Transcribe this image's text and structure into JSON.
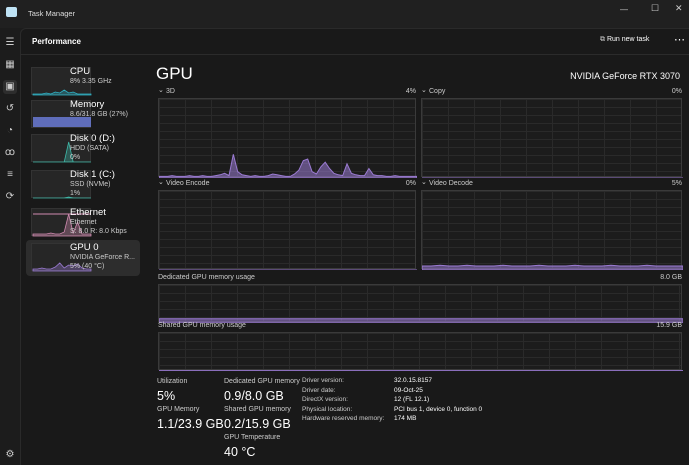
{
  "app": {
    "title": "Task Manager",
    "page": "Performance",
    "run_new_task": "Run new task",
    "more": "⋯",
    "window_controls": [
      "—",
      "☐",
      "✕"
    ]
  },
  "accent": "#9b7bd3",
  "sidebar": [
    {
      "name": "CPU",
      "sub1": "8%  3.35 GHz",
      "sub2": "",
      "sub3": "",
      "color": "#2fb4c8"
    },
    {
      "name": "Memory",
      "sub1": "8.6/31.8 GB (27%)",
      "sub2": "",
      "sub3": "",
      "color": "#6e7fe0"
    },
    {
      "name": "Disk 0 (D:)",
      "sub1": "HDD (SATA)",
      "sub2": "0%",
      "sub3": "",
      "color": "#3fb8a8"
    },
    {
      "name": "Disk 1 (C:)",
      "sub1": "SSD (NVMe)",
      "sub2": "1%",
      "sub3": "",
      "color": "#3fb8a8"
    },
    {
      "name": "Ethernet",
      "sub1": "Ethernet",
      "sub2": "S: 8.0  R: 8.0 Kbps",
      "sub3": "",
      "color": "#d08ab0"
    },
    {
      "name": "GPU 0",
      "sub1": "NVIDIA GeForce R...",
      "sub2": "5% (40 °C)",
      "sub3": "",
      "color": "#9b7bd3"
    }
  ],
  "main": {
    "title": "GPU",
    "device": "NVIDIA GeForce RTX 3070",
    "engines": [
      {
        "label": "3D",
        "value": "4%"
      },
      {
        "label": "Copy",
        "value": "0%"
      },
      {
        "label": "Video Encode",
        "value": "0%"
      },
      {
        "label": "Video Decode",
        "value": "5%"
      }
    ],
    "dedicated": {
      "label": "Dedicated GPU memory usage",
      "max": "8.0 GB"
    },
    "shared": {
      "label": "Shared GPU memory usage",
      "max": "15.9 GB"
    },
    "stats": {
      "utilization_label": "Utilization",
      "utilization": "5%",
      "gpu_memory_label": "GPU Memory",
      "gpu_memory": "1.1/23.9 GB",
      "dedicated_label": "Dedicated GPU memory",
      "dedicated": "0.9/8.0 GB",
      "shared_label": "Shared GPU memory",
      "shared": "0.2/15.9 GB",
      "temp_label": "GPU Temperature",
      "temp": "40 °C"
    },
    "details": [
      {
        "k": "Driver version:",
        "v": "32.0.15.8157"
      },
      {
        "k": "Driver date:",
        "v": "09-Oct-25"
      },
      {
        "k": "DirectX version:",
        "v": "12 (FL 12.1)"
      },
      {
        "k": "Physical location:",
        "v": "PCI bus 1, device 0, function 0"
      },
      {
        "k": "Hardware reserved memory:",
        "v": "174 MB"
      }
    ]
  },
  "chart_data": [
    {
      "type": "area",
      "name": "3D",
      "ylim": [
        0,
        100
      ],
      "values": [
        2,
        2,
        2,
        3,
        2,
        2,
        2,
        3,
        2,
        2,
        3,
        2,
        2,
        3,
        4,
        6,
        3,
        30,
        8,
        4,
        3,
        2,
        3,
        2,
        2,
        3,
        5,
        4,
        3,
        2,
        2,
        5,
        10,
        22,
        24,
        8,
        5,
        14,
        20,
        12,
        6,
        4,
        3,
        18,
        6,
        4,
        3,
        3,
        12,
        4,
        3,
        3,
        2,
        2,
        3,
        2,
        2,
        2,
        2,
        2
      ]
    },
    {
      "type": "area",
      "name": "Copy",
      "ylim": [
        0,
        100
      ],
      "values": [
        0,
        0,
        0,
        0,
        0,
        0,
        0,
        0,
        0,
        0
      ]
    },
    {
      "type": "area",
      "name": "Video Encode",
      "ylim": [
        0,
        100
      ],
      "values": [
        0,
        0,
        0,
        0,
        0,
        0,
        0,
        0,
        0,
        0
      ]
    },
    {
      "type": "area",
      "name": "Video Decode",
      "ylim": [
        0,
        100
      ],
      "values": [
        5,
        5,
        6,
        5,
        5,
        6,
        5,
        5,
        5,
        6,
        5,
        5,
        5,
        6,
        5,
        5,
        5,
        6,
        5,
        5,
        5,
        6,
        5,
        5,
        5,
        6,
        5,
        5,
        5,
        5
      ]
    },
    {
      "type": "area",
      "name": "Dedicated GPU memory usage",
      "ylim": [
        0,
        100
      ],
      "values": [
        11,
        11,
        11,
        11,
        11,
        11,
        11,
        11,
        11,
        11
      ]
    },
    {
      "type": "area",
      "name": "Shared GPU memory usage",
      "ylim": [
        0,
        100
      ],
      "values": [
        1,
        1,
        1,
        1,
        1,
        1,
        1,
        1,
        1,
        1
      ]
    }
  ]
}
